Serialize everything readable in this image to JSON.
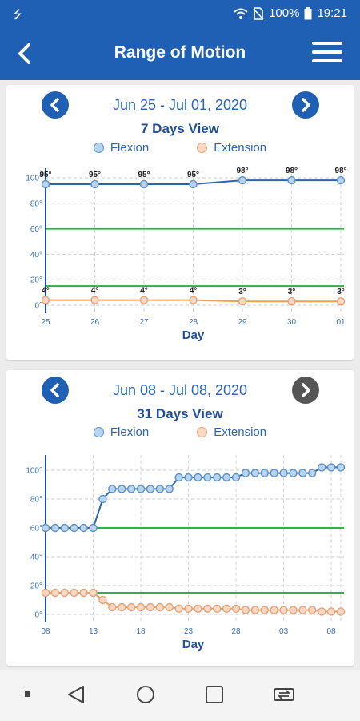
{
  "status_bar": {
    "battery": "100%",
    "time": "19:21"
  },
  "header": {
    "title": "Range of Motion"
  },
  "legend": {
    "flexion": "Flexion",
    "extension": "Extension"
  },
  "colors": {
    "brand": "#1f5fb4",
    "flexion": "#5b92cc",
    "extension": "#e6a27a",
    "limit": "#2fb04a"
  },
  "cards": [
    {
      "range": "Jun 25 - Jul 01, 2020",
      "view": "7 Days View"
    },
    {
      "range": "Jun 08 - Jul 08, 2020",
      "view": "31 Days View"
    }
  ],
  "chart_data": [
    {
      "type": "line",
      "title": "7 Days View",
      "xlabel": "Day",
      "ylabel": "",
      "ylim": [
        0,
        100
      ],
      "yticks": [
        "0°",
        "20°",
        "40°",
        "60°",
        "80°",
        "100°"
      ],
      "categories": [
        "25",
        "26",
        "27",
        "28",
        "29",
        "30",
        "01"
      ],
      "reference_lines": [
        60,
        15
      ],
      "series": [
        {
          "name": "Flexion",
          "values": [
            95,
            95,
            95,
            95,
            98,
            98,
            98
          ],
          "labels": [
            "95°",
            "95°",
            "95°",
            "95°",
            "98°",
            "98°",
            "98°"
          ]
        },
        {
          "name": "Extension",
          "values": [
            4,
            4,
            4,
            4,
            3,
            3,
            3
          ],
          "labels": [
            "4°",
            "4°",
            "4°",
            "4°",
            "3°",
            "3°",
            "3°"
          ]
        }
      ],
      "grid": true
    },
    {
      "type": "line",
      "title": "31 Days View",
      "xlabel": "Day",
      "ylabel": "",
      "ylim": [
        0,
        110
      ],
      "yticks": [
        "0°",
        "20°",
        "40°",
        "60°",
        "80°",
        "100°"
      ],
      "x_tick_labels": [
        "08",
        "13",
        "18",
        "23",
        "28",
        "03",
        "08"
      ],
      "reference_lines": [
        60,
        15
      ],
      "series": [
        {
          "name": "Flexion",
          "values": [
            60,
            60,
            60,
            60,
            60,
            60,
            80,
            87,
            87,
            87,
            87,
            87,
            87,
            87,
            95,
            95,
            95,
            95,
            95,
            95,
            95,
            98,
            98,
            98,
            98,
            98,
            98,
            98,
            98,
            102,
            102,
            102
          ]
        },
        {
          "name": "Extension",
          "values": [
            15,
            15,
            15,
            15,
            15,
            15,
            10,
            5,
            5,
            5,
            5,
            5,
            5,
            5,
            4,
            4,
            4,
            4,
            4,
            4,
            4,
            3,
            3,
            3,
            3,
            3,
            3,
            3,
            3,
            2,
            2,
            2
          ]
        }
      ],
      "grid": true
    }
  ]
}
